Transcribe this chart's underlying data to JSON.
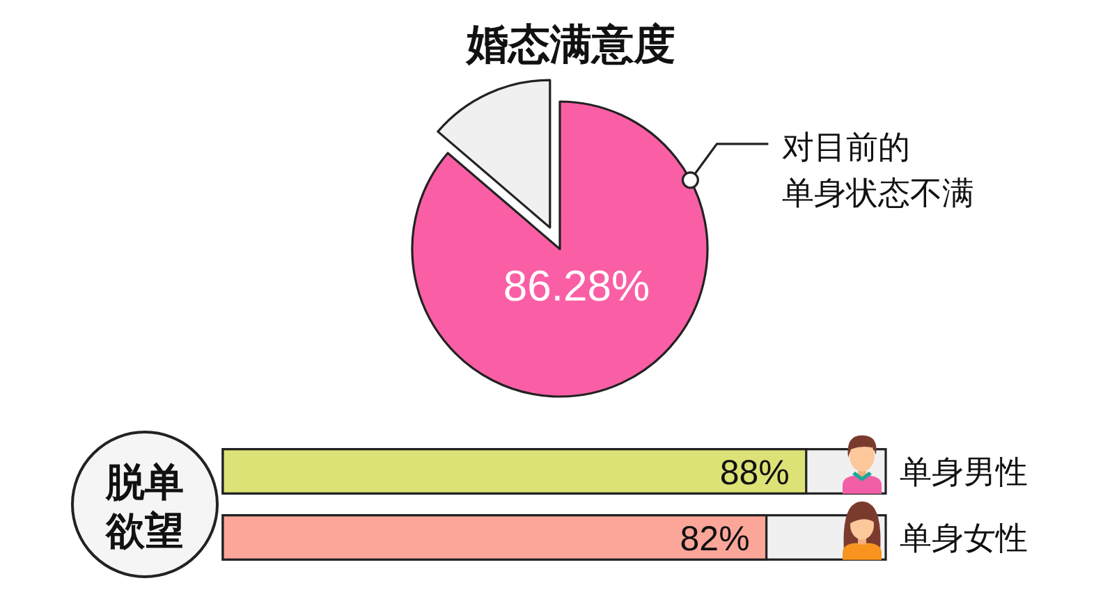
{
  "chart_data": [
    {
      "type": "pie",
      "title": "婚态满意度",
      "categories": [
        "对目前的单身状态不满",
        null
      ],
      "values": [
        86.28,
        13.72
      ],
      "colors": [
        "#fa5fa5",
        "#f0f0f0"
      ],
      "value_labels": [
        "86.28%",
        null
      ]
    },
    {
      "type": "bar",
      "orientation": "horizontal",
      "title": "脱单欲望",
      "categories": [
        "单身男性",
        "单身女性"
      ],
      "values": [
        88,
        82
      ],
      "colors": [
        "#dde276",
        "#fca69a"
      ],
      "value_labels": [
        "88%",
        "82%"
      ],
      "xlim": [
        0,
        100
      ]
    }
  ]
}
